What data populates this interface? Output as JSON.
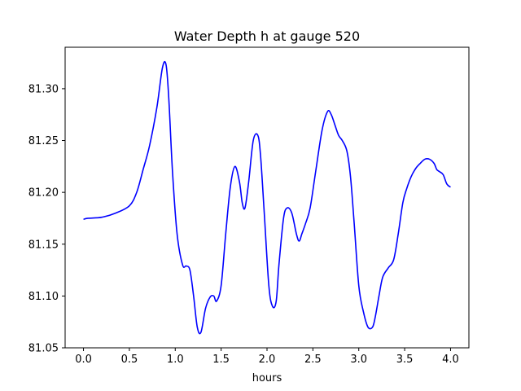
{
  "chart_data": {
    "type": "line",
    "title": "Water Depth h at gauge 520",
    "xlabel": "hours",
    "ylabel": "",
    "xlim": [
      -0.2,
      4.2
    ],
    "ylim": [
      81.05,
      81.34
    ],
    "xticks": [
      0.0,
      0.5,
      1.0,
      1.5,
      2.0,
      2.5,
      3.0,
      3.5,
      4.0
    ],
    "xtick_labels": [
      "0.0",
      "0.5",
      "1.0",
      "1.5",
      "2.0",
      "2.5",
      "3.0",
      "3.5",
      "4.0"
    ],
    "yticks": [
      81.05,
      81.1,
      81.15,
      81.2,
      81.25,
      81.3
    ],
    "ytick_labels": [
      "81.05",
      "81.10",
      "81.15",
      "81.20",
      "81.25",
      "81.30"
    ],
    "grid": false,
    "series": [
      {
        "color": "#0000ff",
        "x": [
          0.0,
          0.05,
          0.2,
          0.35,
          0.5,
          0.58,
          0.65,
          0.72,
          0.8,
          0.86,
          0.9,
          0.93,
          0.97,
          1.02,
          1.08,
          1.12,
          1.16,
          1.2,
          1.24,
          1.28,
          1.33,
          1.38,
          1.42,
          1.45,
          1.5,
          1.55,
          1.6,
          1.65,
          1.7,
          1.73,
          1.76,
          1.8,
          1.85,
          1.9,
          1.93,
          1.97,
          2.02,
          2.06,
          2.1,
          2.13,
          2.18,
          2.22,
          2.27,
          2.32,
          2.35,
          2.38,
          2.42,
          2.47,
          2.53,
          2.6,
          2.66,
          2.7,
          2.74,
          2.78,
          2.82,
          2.87,
          2.91,
          2.95,
          3.0,
          3.05,
          3.1,
          3.15,
          3.18,
          3.22,
          3.26,
          3.32,
          3.38,
          3.43,
          3.48,
          3.52,
          3.57,
          3.62,
          3.67,
          3.72,
          3.77,
          3.82,
          3.85,
          3.88,
          3.92,
          3.96,
          4.0
        ],
        "y": [
          81.174,
          81.175,
          81.176,
          81.18,
          81.187,
          81.2,
          81.222,
          81.245,
          81.282,
          81.32,
          81.323,
          81.29,
          81.22,
          81.16,
          81.13,
          81.129,
          81.125,
          81.1,
          81.07,
          81.065,
          81.088,
          81.099,
          81.1,
          81.095,
          81.11,
          81.16,
          81.205,
          81.225,
          81.21,
          81.19,
          81.185,
          81.21,
          81.25,
          81.255,
          81.235,
          81.18,
          81.11,
          81.09,
          81.095,
          81.13,
          81.175,
          81.185,
          81.18,
          81.16,
          81.153,
          81.16,
          81.17,
          81.185,
          81.22,
          81.26,
          81.278,
          81.275,
          81.265,
          81.255,
          81.25,
          81.24,
          81.215,
          81.17,
          81.11,
          81.085,
          81.07,
          81.07,
          81.08,
          81.1,
          81.118,
          81.127,
          81.135,
          81.16,
          81.19,
          81.203,
          81.215,
          81.223,
          81.228,
          81.232,
          81.232,
          81.228,
          81.222,
          81.22,
          81.217,
          81.208,
          81.205
        ]
      }
    ]
  }
}
